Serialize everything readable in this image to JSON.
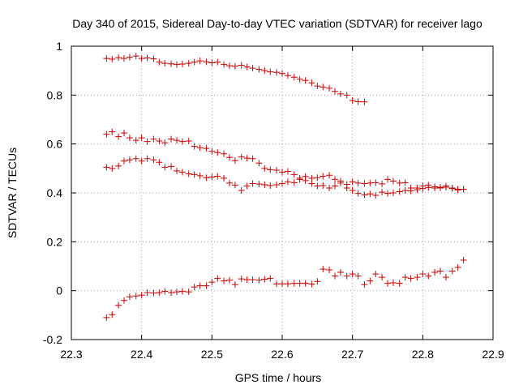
{
  "chart_data": {
    "type": "scatter",
    "title": "Day 340 of 2015, Sidereal Day-to-day VTEC variation (SDTVAR) for receiver lago",
    "xlabel": "GPS time / hours",
    "ylabel": "SDTVAR / TECUs",
    "xlim": [
      22.3,
      22.9
    ],
    "ylim": [
      -0.2,
      1.0
    ],
    "xticks": [
      22.3,
      22.4,
      22.5,
      22.6,
      22.7,
      22.8,
      22.9
    ],
    "xtick_labels": [
      "22.3",
      "22.4",
      "22.5",
      "22.6",
      "22.7",
      "22.8",
      "22.9"
    ],
    "yticks": [
      -0.2,
      0,
      0.2,
      0.4,
      0.6,
      0.8,
      1.0
    ],
    "ytick_labels": [
      "-0.2",
      "0",
      "0.2",
      "0.4",
      "0.6",
      "0.8",
      "1"
    ],
    "grid": true,
    "marker": "+",
    "color": "#cc0000",
    "series": [
      {
        "name": "series-1",
        "x": [
          22.35,
          22.358,
          22.367,
          22.375,
          22.383,
          22.392,
          22.4,
          22.408,
          22.417,
          22.425,
          22.433,
          22.442,
          22.45,
          22.458,
          22.467,
          22.475,
          22.483,
          22.492,
          22.5,
          22.508,
          22.517,
          22.525,
          22.533,
          22.542,
          22.55,
          22.558,
          22.567,
          22.575,
          22.583,
          22.592,
          22.6,
          22.608,
          22.617,
          22.625,
          22.633,
          22.642,
          22.65,
          22.658,
          22.667,
          22.675,
          22.683,
          22.692,
          22.7,
          22.708,
          22.717
        ],
        "y": [
          0.95,
          0.947,
          0.953,
          0.95,
          0.955,
          0.96,
          0.95,
          0.952,
          0.948,
          0.935,
          0.93,
          0.928,
          0.925,
          0.927,
          0.93,
          0.935,
          0.94,
          0.936,
          0.932,
          0.935,
          0.925,
          0.92,
          0.918,
          0.922,
          0.915,
          0.91,
          0.905,
          0.9,
          0.895,
          0.893,
          0.888,
          0.88,
          0.873,
          0.865,
          0.86,
          0.85,
          0.837,
          0.833,
          0.828,
          0.815,
          0.805,
          0.8,
          0.778,
          0.773,
          0.772
        ]
      },
      {
        "name": "series-2",
        "x": [
          22.35,
          22.358,
          22.367,
          22.375,
          22.383,
          22.392,
          22.4,
          22.408,
          22.417,
          22.425,
          22.433,
          22.442,
          22.45,
          22.458,
          22.467,
          22.475,
          22.483,
          22.492,
          22.5,
          22.508,
          22.517,
          22.525,
          22.533,
          22.542,
          22.55,
          22.558,
          22.567,
          22.575,
          22.583,
          22.592,
          22.6,
          22.608,
          22.617,
          22.625,
          22.633,
          22.642,
          22.65,
          22.658,
          22.667,
          22.675,
          22.683,
          22.692,
          22.7,
          22.708,
          22.717,
          22.725,
          22.733,
          22.742,
          22.75,
          22.758,
          22.767,
          22.775,
          22.783,
          22.792,
          22.8,
          22.808,
          22.817,
          22.825,
          22.833,
          22.842,
          22.85,
          22.858
        ],
        "y": [
          0.64,
          0.65,
          0.63,
          0.645,
          0.625,
          0.615,
          0.625,
          0.61,
          0.62,
          0.612,
          0.605,
          0.62,
          0.615,
          0.61,
          0.612,
          0.59,
          0.585,
          0.582,
          0.57,
          0.565,
          0.56,
          0.545,
          0.532,
          0.547,
          0.542,
          0.54,
          0.522,
          0.5,
          0.495,
          0.493,
          0.485,
          0.488,
          0.475,
          0.46,
          0.467,
          0.46,
          0.462,
          0.468,
          0.472,
          0.455,
          0.448,
          0.435,
          0.445,
          0.44,
          0.438,
          0.44,
          0.442,
          0.437,
          0.455,
          0.448,
          0.44,
          0.442,
          0.42,
          0.42,
          0.428,
          0.432,
          0.425,
          0.42,
          0.423,
          0.418,
          0.412,
          0.415
        ]
      },
      {
        "name": "series-3",
        "x": [
          22.35,
          22.358,
          22.367,
          22.375,
          22.383,
          22.392,
          22.4,
          22.408,
          22.417,
          22.425,
          22.433,
          22.442,
          22.45,
          22.458,
          22.467,
          22.475,
          22.483,
          22.492,
          22.5,
          22.508,
          22.517,
          22.525,
          22.533,
          22.542,
          22.55,
          22.558,
          22.567,
          22.575,
          22.583,
          22.592,
          22.6,
          22.608,
          22.617,
          22.625,
          22.633,
          22.642,
          22.65,
          22.658,
          22.667,
          22.675,
          22.683,
          22.692,
          22.7,
          22.708,
          22.717,
          22.725,
          22.733,
          22.742,
          22.75,
          22.758,
          22.767,
          22.775,
          22.783,
          22.792,
          22.8,
          22.808,
          22.817,
          22.825,
          22.833,
          22.842,
          22.85,
          22.858
        ],
        "y": [
          0.505,
          0.5,
          0.51,
          0.53,
          0.535,
          0.54,
          0.53,
          0.54,
          0.535,
          0.525,
          0.505,
          0.508,
          0.49,
          0.485,
          0.478,
          0.475,
          0.47,
          0.462,
          0.465,
          0.468,
          0.46,
          0.44,
          0.432,
          0.41,
          0.428,
          0.438,
          0.436,
          0.433,
          0.43,
          0.433,
          0.438,
          0.445,
          0.442,
          0.455,
          0.45,
          0.438,
          0.428,
          0.43,
          0.42,
          0.428,
          0.44,
          0.42,
          0.41,
          0.398,
          0.392,
          0.396,
          0.39,
          0.403,
          0.398,
          0.4,
          0.405,
          0.41,
          0.408,
          0.413,
          0.418,
          0.422,
          0.42,
          0.423,
          0.428,
          0.42,
          0.415,
          0.415
        ]
      },
      {
        "name": "series-4",
        "x": [
          22.35,
          22.358,
          22.367,
          22.375,
          22.383,
          22.392,
          22.4,
          22.408,
          22.417,
          22.425,
          22.433,
          22.442,
          22.45,
          22.458,
          22.467,
          22.475,
          22.483,
          22.492,
          22.5,
          22.508,
          22.517,
          22.525,
          22.533,
          22.542,
          22.55,
          22.558,
          22.567,
          22.575,
          22.583,
          22.592,
          22.6,
          22.608,
          22.617,
          22.625,
          22.633,
          22.642,
          22.65,
          22.658,
          22.667,
          22.675,
          22.683,
          22.692,
          22.7,
          22.708,
          22.717,
          22.725,
          22.733,
          22.742,
          22.75,
          22.758,
          22.767,
          22.775,
          22.783,
          22.792,
          22.8,
          22.808,
          22.817,
          22.825,
          22.833,
          22.842,
          22.85,
          22.858
        ],
        "y": [
          -0.11,
          -0.098,
          -0.06,
          -0.04,
          -0.025,
          -0.022,
          -0.018,
          -0.008,
          -0.01,
          -0.008,
          -0.003,
          -0.008,
          -0.005,
          -0.003,
          -0.005,
          0.015,
          0.02,
          0.02,
          0.035,
          0.05,
          0.04,
          0.043,
          0.025,
          0.048,
          0.045,
          0.045,
          0.043,
          0.047,
          0.05,
          0.028,
          0.028,
          0.028,
          0.03,
          0.03,
          0.03,
          0.027,
          0.038,
          0.088,
          0.085,
          0.06,
          0.075,
          0.06,
          0.068,
          0.06,
          0.025,
          0.04,
          0.068,
          0.055,
          0.03,
          0.032,
          0.03,
          0.055,
          0.05,
          0.055,
          0.068,
          0.06,
          0.075,
          0.08,
          0.055,
          0.08,
          0.095,
          0.125
        ]
      }
    ]
  }
}
